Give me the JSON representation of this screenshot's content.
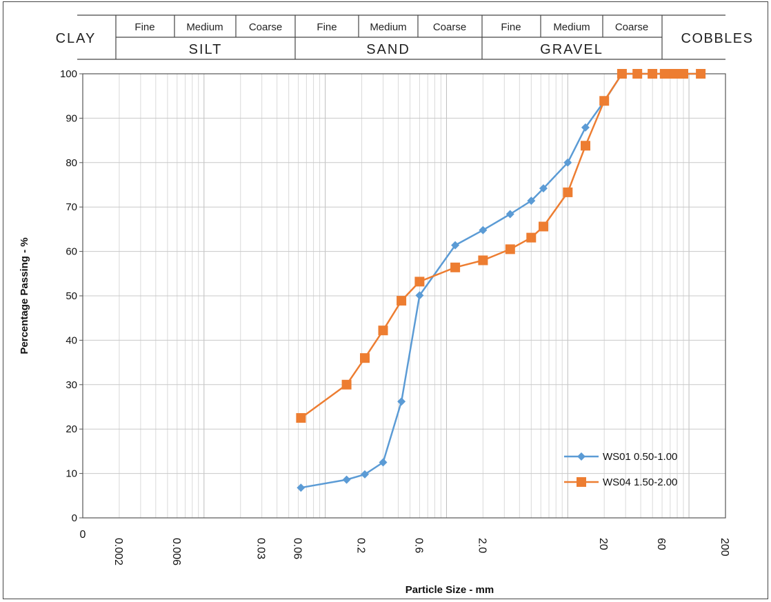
{
  "classification": {
    "clay": "CLAY",
    "silt": "SILT",
    "sand": "SAND",
    "gravel": "GRAVEL",
    "cobbles": "COBBLES",
    "fine": "Fine",
    "medium": "Medium",
    "coarse": "Coarse"
  },
  "chart_data": {
    "type": "line",
    "xlabel": "Particle Size  - mm",
    "ylabel": "Percentage Passing - %",
    "x_scale": "log",
    "xlim": [
      0.001,
      200
    ],
    "ylim": [
      0,
      100
    ],
    "y_ticks": [
      0,
      10,
      20,
      30,
      40,
      50,
      60,
      70,
      80,
      90,
      100
    ],
    "x_origin_label": "0",
    "x_tick_labels": [
      {
        "value": 0.002,
        "label": "0.002"
      },
      {
        "value": 0.006,
        "label": "0.006"
      },
      {
        "value": 0.03,
        "label": "0.03"
      },
      {
        "value": 0.06,
        "label": "0.06"
      },
      {
        "value": 0.2,
        "label": "0.2"
      },
      {
        "value": 0.6,
        "label": "0.6"
      },
      {
        "value": 2.0,
        "label": "2.0"
      },
      {
        "value": 20,
        "label": "20"
      },
      {
        "value": 60,
        "label": "60"
      },
      {
        "value": 200,
        "label": "200"
      }
    ],
    "grid": true,
    "legend_position": "bottom-right",
    "series": [
      {
        "name": "WS01 0.50-1.00",
        "color": "#5b9bd5",
        "marker": "diamond",
        "points": [
          [
            0.063,
            6.8
          ],
          [
            0.15,
            8.6
          ],
          [
            0.212,
            9.8
          ],
          [
            0.3,
            12.5
          ],
          [
            0.425,
            26.2
          ],
          [
            0.6,
            50.1
          ],
          [
            1.18,
            61.4
          ],
          [
            2.0,
            64.8
          ],
          [
            3.35,
            68.4
          ],
          [
            5.0,
            71.4
          ],
          [
            6.3,
            74.2
          ],
          [
            10.0,
            80.0
          ],
          [
            14.0,
            87.9
          ],
          [
            20.0,
            93.8
          ],
          [
            28.0,
            100
          ],
          [
            37.5,
            100
          ],
          [
            50.0,
            100
          ],
          [
            63.0,
            100
          ],
          [
            75.0,
            100
          ],
          [
            90.0,
            100
          ],
          [
            125.0,
            100
          ]
        ]
      },
      {
        "name": "WS04 1.50-2.00",
        "color": "#ed7d31",
        "marker": "square",
        "points": [
          [
            0.063,
            22.5
          ],
          [
            0.15,
            30.0
          ],
          [
            0.212,
            36.0
          ],
          [
            0.3,
            42.2
          ],
          [
            0.425,
            48.9
          ],
          [
            0.6,
            53.2
          ],
          [
            1.18,
            56.4
          ],
          [
            2.0,
            58.0
          ],
          [
            3.35,
            60.5
          ],
          [
            5.0,
            63.1
          ],
          [
            6.3,
            65.6
          ],
          [
            10.0,
            73.3
          ],
          [
            14.0,
            83.8
          ],
          [
            20.0,
            93.9
          ],
          [
            28.0,
            100
          ],
          [
            37.5,
            100
          ],
          [
            50.0,
            100
          ],
          [
            63.0,
            100
          ],
          [
            75.0,
            100
          ],
          [
            90.0,
            100
          ],
          [
            125.0,
            100
          ]
        ]
      }
    ]
  }
}
